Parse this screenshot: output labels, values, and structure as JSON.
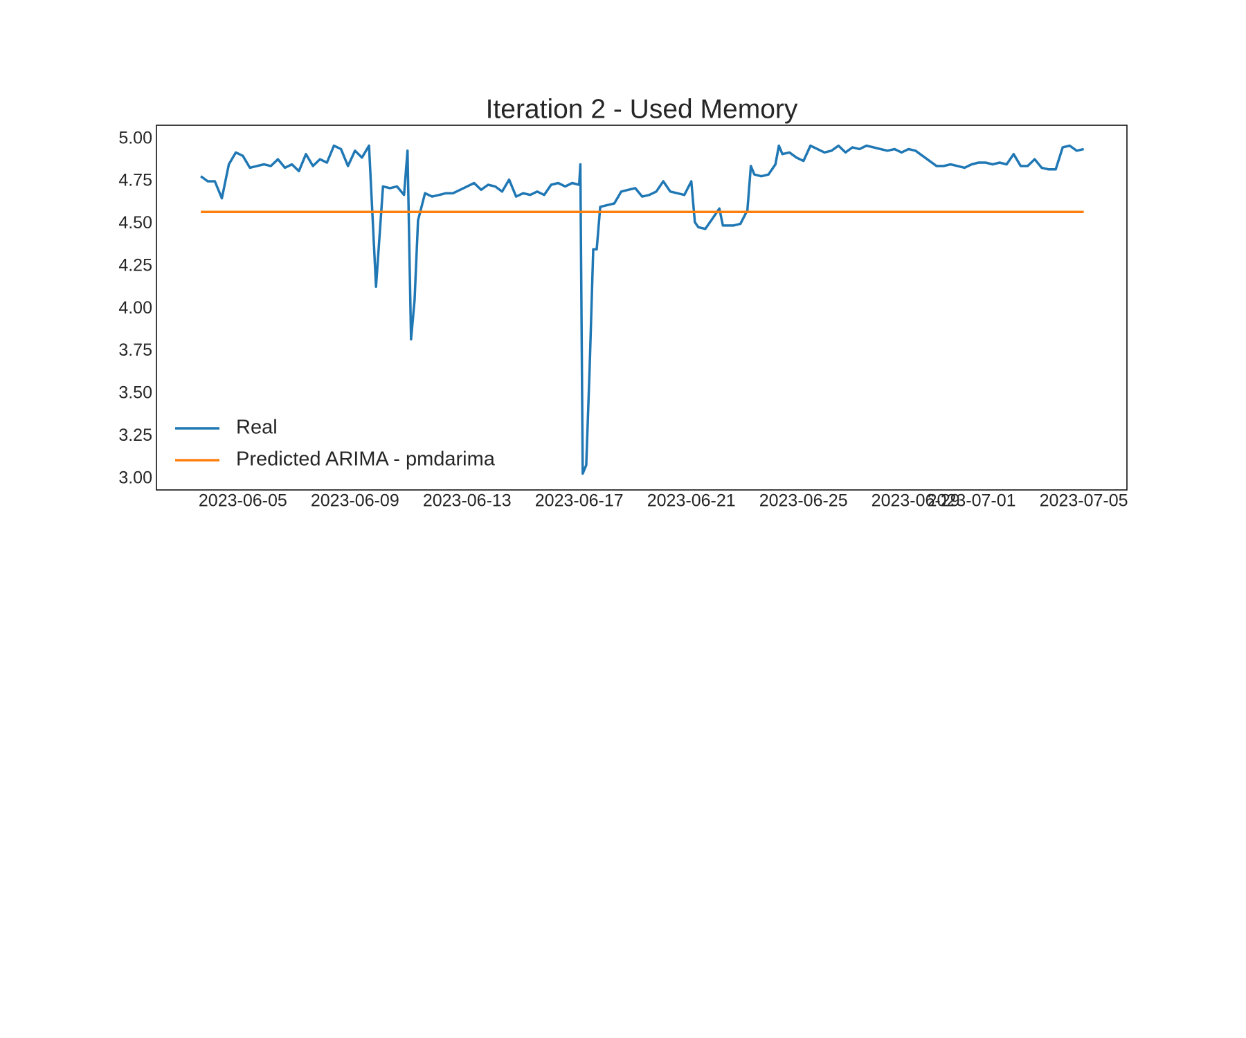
{
  "chart_data": {
    "type": "line",
    "title": "Iteration 2 - Used Memory",
    "x": [
      "2023-06-03 12:00",
      "2023-06-03 18:00",
      "2023-06-04 00:00",
      "2023-06-04 06:00",
      "2023-06-04 12:00",
      "2023-06-04 18:00",
      "2023-06-05 00:00",
      "2023-06-05 06:00",
      "2023-06-05 12:00",
      "2023-06-05 18:00",
      "2023-06-06 00:00",
      "2023-06-06 06:00",
      "2023-06-06 12:00",
      "2023-06-06 18:00",
      "2023-06-07 00:00",
      "2023-06-07 06:00",
      "2023-06-07 12:00",
      "2023-06-07 18:00",
      "2023-06-08 00:00",
      "2023-06-08 06:00",
      "2023-06-08 12:00",
      "2023-06-08 18:00",
      "2023-06-09 00:00",
      "2023-06-09 06:00",
      "2023-06-09 12:00",
      "2023-06-09 18:00",
      "2023-06-10 00:00",
      "2023-06-10 06:00",
      "2023-06-10 12:00",
      "2023-06-10 18:00",
      "2023-06-10 21:00",
      "2023-06-11 00:00",
      "2023-06-11 03:00",
      "2023-06-11 06:00",
      "2023-06-11 12:00",
      "2023-06-11 18:00",
      "2023-06-12 00:00",
      "2023-06-12 06:00",
      "2023-06-12 12:00",
      "2023-06-12 18:00",
      "2023-06-13 00:00",
      "2023-06-13 06:00",
      "2023-06-13 12:00",
      "2023-06-13 18:00",
      "2023-06-14 00:00",
      "2023-06-14 06:00",
      "2023-06-14 12:00",
      "2023-06-14 18:00",
      "2023-06-15 00:00",
      "2023-06-15 06:00",
      "2023-06-15 12:00",
      "2023-06-15 18:00",
      "2023-06-16 00:00",
      "2023-06-16 06:00",
      "2023-06-16 12:00",
      "2023-06-16 18:00",
      "2023-06-17 00:00",
      "2023-06-17 01:00",
      "2023-06-17 03:00",
      "2023-06-17 06:00",
      "2023-06-17 09:00",
      "2023-06-17 12:00",
      "2023-06-17 15:00",
      "2023-06-17 18:00",
      "2023-06-18 00:00",
      "2023-06-18 06:00",
      "2023-06-18 12:00",
      "2023-06-18 18:00",
      "2023-06-19 00:00",
      "2023-06-19 06:00",
      "2023-06-19 12:00",
      "2023-06-19 18:00",
      "2023-06-20 00:00",
      "2023-06-20 06:00",
      "2023-06-20 12:00",
      "2023-06-20 18:00",
      "2023-06-21 00:00",
      "2023-06-21 03:00",
      "2023-06-21 06:00",
      "2023-06-21 12:00",
      "2023-06-21 18:00",
      "2023-06-22 00:00",
      "2023-06-22 03:00",
      "2023-06-22 12:00",
      "2023-06-22 18:00",
      "2023-06-23 00:00",
      "2023-06-23 03:00",
      "2023-06-23 06:00",
      "2023-06-23 12:00",
      "2023-06-23 18:00",
      "2023-06-24 00:00",
      "2023-06-24 03:00",
      "2023-06-24 06:00",
      "2023-06-24 12:00",
      "2023-06-24 18:00",
      "2023-06-25 00:00",
      "2023-06-25 06:00",
      "2023-06-25 12:00",
      "2023-06-25 18:00",
      "2023-06-26 00:00",
      "2023-06-26 06:00",
      "2023-06-26 12:00",
      "2023-06-26 18:00",
      "2023-06-27 00:00",
      "2023-06-27 06:00",
      "2023-06-27 12:00",
      "2023-06-27 18:00",
      "2023-06-28 00:00",
      "2023-06-28 06:00",
      "2023-06-28 12:00",
      "2023-06-28 18:00",
      "2023-06-29 00:00",
      "2023-06-29 18:00",
      "2023-06-30 00:00",
      "2023-06-30 06:00",
      "2023-06-30 12:00",
      "2023-06-30 18:00",
      "2023-07-01 00:00",
      "2023-07-01 06:00",
      "2023-07-01 12:00",
      "2023-07-01 18:00",
      "2023-07-02 00:00",
      "2023-07-02 06:00",
      "2023-07-02 12:00",
      "2023-07-02 18:00",
      "2023-07-03 00:00",
      "2023-07-03 06:00",
      "2023-07-03 12:00",
      "2023-07-03 18:00",
      "2023-07-04 00:00",
      "2023-07-04 06:00",
      "2023-07-04 12:00",
      "2023-07-04 18:00",
      "2023-07-05 00:00"
    ],
    "series": [
      {
        "name": "Real",
        "color": "#1f77b4",
        "values": [
          4.78,
          4.75,
          4.75,
          4.65,
          4.85,
          4.92,
          4.9,
          4.83,
          4.84,
          4.85,
          4.84,
          4.88,
          4.83,
          4.85,
          4.81,
          4.91,
          4.84,
          4.88,
          4.86,
          4.96,
          4.94,
          4.84,
          4.93,
          4.89,
          4.96,
          4.13,
          4.72,
          4.71,
          4.72,
          4.67,
          4.93,
          3.82,
          4.05,
          4.52,
          4.68,
          4.66,
          4.67,
          4.68,
          4.68,
          4.7,
          4.72,
          4.74,
          4.7,
          4.73,
          4.72,
          4.69,
          4.76,
          4.66,
          4.68,
          4.67,
          4.69,
          4.67,
          4.73,
          4.74,
          4.72,
          4.74,
          4.73,
          4.85,
          3.03,
          3.08,
          3.66,
          4.35,
          4.35,
          4.6,
          4.61,
          4.62,
          4.69,
          4.7,
          4.71,
          4.66,
          4.67,
          4.69,
          4.75,
          4.69,
          4.68,
          4.67,
          4.75,
          4.51,
          4.48,
          4.47,
          4.53,
          4.59,
          4.49,
          4.49,
          4.5,
          4.58,
          4.84,
          4.79,
          4.78,
          4.79,
          4.85,
          4.96,
          4.91,
          4.92,
          4.89,
          4.87,
          4.96,
          4.94,
          4.92,
          4.93,
          4.96,
          4.92,
          4.95,
          4.94,
          4.96,
          4.95,
          4.94,
          4.93,
          4.94,
          4.92,
          4.94,
          4.93,
          4.84,
          4.84,
          4.85,
          4.84,
          4.83,
          4.85,
          4.86,
          4.86,
          4.85,
          4.86,
          4.85,
          4.91,
          4.84,
          4.84,
          4.88,
          4.83,
          4.82,
          4.82,
          4.95,
          4.96,
          4.93,
          4.94
        ]
      },
      {
        "name": "Predicted ARIMA - pmdarima",
        "color": "#ff7f0e",
        "x": [
          "2023-06-03 12:00",
          "2023-07-05 00:00"
        ],
        "values": [
          4.57,
          4.57
        ]
      }
    ],
    "xlim": [
      "2023-06-01 22:00",
      "2023-07-06 13:00"
    ],
    "xticks": [
      "2023-06-05",
      "2023-06-09",
      "2023-06-13",
      "2023-06-17",
      "2023-06-21",
      "2023-06-25",
      "2023-06-29",
      "2023-07-01",
      "2023-07-05"
    ],
    "ylim": [
      2.934,
      5.08
    ],
    "yticks": [
      {
        "value": 3,
        "label": "3.00"
      },
      {
        "value": 3.25,
        "label": "3.25"
      },
      {
        "value": 3.5,
        "label": "3.50"
      },
      {
        "value": 3.75,
        "label": "3.75"
      },
      {
        "value": 4,
        "label": "4.00"
      },
      {
        "value": 4.25,
        "label": "4.25"
      },
      {
        "value": 4.5,
        "label": "4.50"
      },
      {
        "value": 4.75,
        "label": "4.75"
      },
      {
        "value": 5,
        "label": "5.00"
      }
    ],
    "legend": "lower left",
    "grid": false
  }
}
